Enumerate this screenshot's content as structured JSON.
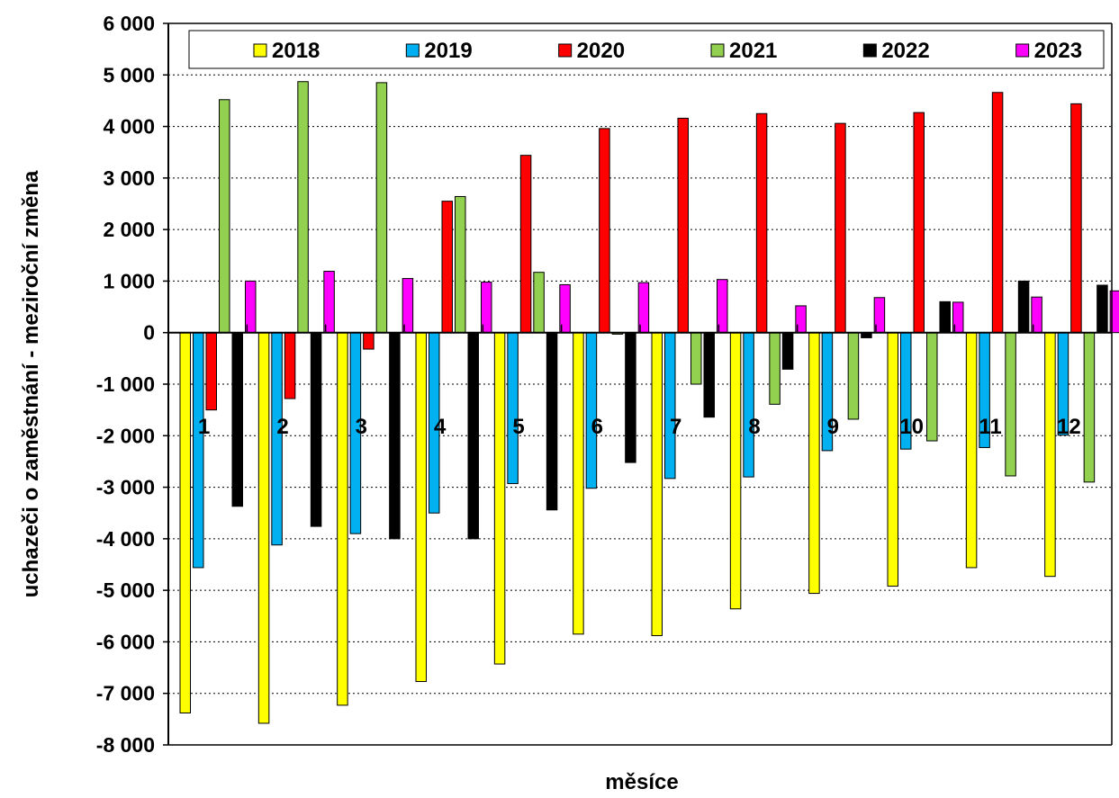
{
  "chart_data": {
    "type": "bar",
    "title": "",
    "xlabel": "měsíce",
    "ylabel": "uchazeči o zaměstnání - meziroční změna",
    "ylim": [
      -8000,
      6000
    ],
    "ytick_step": 1000,
    "ytick_labels": [
      "6 000",
      "5 000",
      "4 000",
      "3 000",
      "2 000",
      "1 000",
      "0",
      "-1 000",
      "-2 000",
      "-3 000",
      "-4 000",
      "-5 000",
      "-6 000",
      "-7 000",
      "-8 000"
    ],
    "categories": [
      "1",
      "2",
      "3",
      "4",
      "5",
      "6",
      "7",
      "8",
      "9",
      "10",
      "11",
      "12"
    ],
    "grid": "horizontal dotted",
    "legend_position": "top",
    "series": [
      {
        "name": "2018",
        "color": "#ffff00",
        "values": [
          -7380,
          -7580,
          -7230,
          -6770,
          -6430,
          -5850,
          -5880,
          -5360,
          -5060,
          -4920,
          -4560,
          -4730
        ]
      },
      {
        "name": "2019",
        "color": "#00b0f0",
        "values": [
          -4560,
          -4120,
          -3900,
          -3500,
          -2930,
          -3020,
          -2830,
          -2800,
          -2290,
          -2260,
          -2230,
          -1990
        ]
      },
      {
        "name": "2020",
        "color": "#ff0000",
        "values": [
          -1500,
          -1280,
          -320,
          2550,
          3440,
          3960,
          4160,
          4250,
          4060,
          4270,
          4660,
          4440
        ]
      },
      {
        "name": "2021",
        "color": "#92d050",
        "values": [
          4520,
          4870,
          4850,
          2640,
          1170,
          -30,
          -1000,
          -1390,
          -1680,
          -2100,
          -2780,
          -2900
        ]
      },
      {
        "name": "2022",
        "color": "#000000",
        "values": [
          -3370,
          -3760,
          -4000,
          -4000,
          -3440,
          -2520,
          -1640,
          -710,
          -100,
          600,
          1000,
          920
        ]
      },
      {
        "name": "2023",
        "color": "#ff00ff",
        "values": [
          1000,
          1190,
          1050,
          980,
          930,
          970,
          1030,
          520,
          680,
          590,
          690,
          810
        ]
      }
    ]
  }
}
